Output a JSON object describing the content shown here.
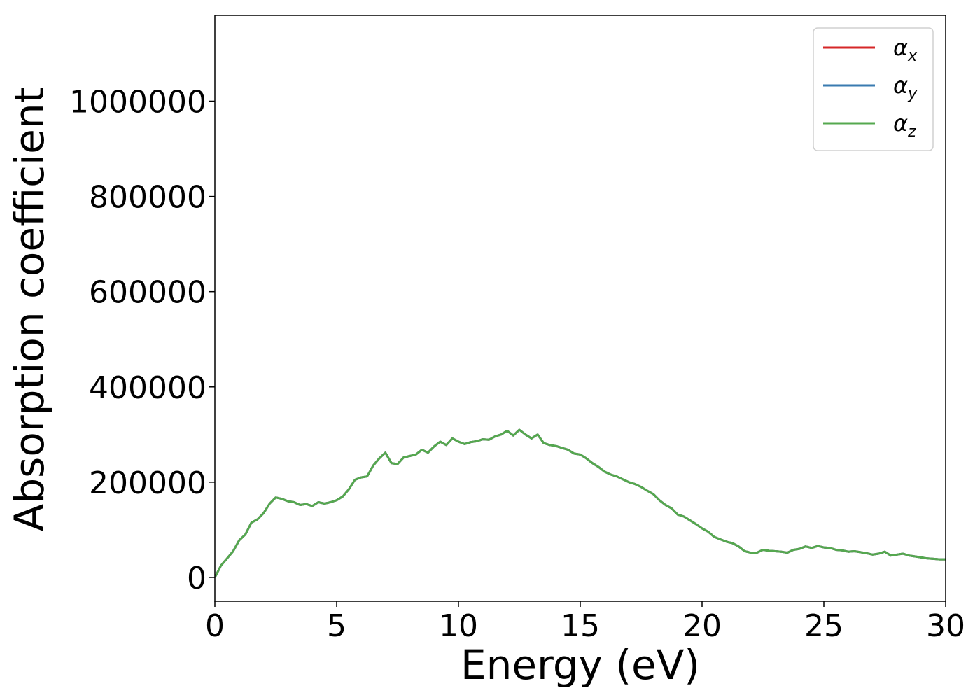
{
  "chart_data": {
    "type": "line",
    "title": "",
    "xlabel": "Energy (eV)",
    "ylabel": "Absorption coefficient",
    "xlim": [
      0,
      30
    ],
    "ylim": [
      -50000,
      1180000
    ],
    "x_ticks": [
      0,
      5,
      10,
      15,
      20,
      25,
      30
    ],
    "y_ticks": [
      0,
      200000,
      400000,
      600000,
      800000,
      1000000
    ],
    "grid": false,
    "legend_position": "top-right",
    "series": [
      {
        "name": "α",
        "subscript": "x",
        "color": "#d62728",
        "x": [
          0,
          0.25,
          0.5,
          0.75,
          1,
          1.25,
          1.5,
          1.75,
          2,
          2.25,
          2.5,
          2.75,
          3,
          3.25,
          3.5,
          3.75,
          4,
          4.25,
          4.5,
          4.75,
          5,
          5.25,
          5.5,
          5.75,
          6,
          6.25,
          6.5,
          6.75,
          7,
          7.25,
          7.5,
          7.75,
          8,
          8.25,
          8.5,
          8.75,
          9,
          9.25,
          9.5,
          9.75,
          10,
          10.25,
          10.5,
          10.75,
          11,
          11.25,
          11.5,
          11.75,
          12,
          12.25,
          12.5,
          12.75,
          13,
          13.25,
          13.5,
          13.75,
          14,
          14.25,
          14.5,
          14.75,
          15,
          15.25,
          15.5,
          15.75,
          16,
          16.25,
          16.5,
          16.75,
          17,
          17.25,
          17.5,
          17.75,
          18,
          18.25,
          18.5,
          18.75,
          19,
          19.25,
          19.5,
          19.75,
          20,
          20.25,
          20.5,
          20.75,
          21,
          21.25,
          21.5,
          21.75,
          22,
          22.25,
          22.5,
          22.75,
          23,
          23.25,
          23.5,
          23.75,
          24,
          24.25,
          24.5,
          24.75,
          25,
          25.25,
          25.5,
          25.75,
          26,
          26.25,
          26.5,
          26.75,
          27,
          27.25,
          27.5,
          27.75,
          28,
          28.25,
          28.5,
          28.75,
          29,
          29.25,
          29.5,
          29.75,
          30
        ],
        "y": [
          0,
          25000,
          40000,
          55000,
          78000,
          90000,
          115000,
          122000,
          135000,
          155000,
          168000,
          165000,
          160000,
          158000,
          152000,
          154000,
          150000,
          158000,
          155000,
          158000,
          162000,
          170000,
          185000,
          205000,
          210000,
          212000,
          235000,
          250000,
          262000,
          240000,
          238000,
          252000,
          255000,
          258000,
          268000,
          262000,
          275000,
          285000,
          278000,
          292000,
          285000,
          280000,
          284000,
          286000,
          290000,
          289000,
          296000,
          300000,
          308000,
          298000,
          310000,
          300000,
          292000,
          300000,
          282000,
          278000,
          276000,
          272000,
          268000,
          260000,
          258000,
          250000,
          240000,
          232000,
          222000,
          216000,
          212000,
          206000,
          200000,
          196000,
          190000,
          182000,
          175000,
          162000,
          152000,
          145000,
          132000,
          128000,
          120000,
          112000,
          103000,
          96000,
          85000,
          80000,
          75000,
          72000,
          65000,
          55000,
          52000,
          52000,
          58000,
          56000,
          55000,
          54000,
          52000,
          58000,
          60000,
          65000,
          62000,
          66000,
          63000,
          62000,
          58000,
          57000,
          54000,
          55000,
          53000,
          51000,
          48000,
          50000,
          54000,
          46000,
          48000,
          50000,
          46000,
          44000,
          42000,
          40000,
          39000,
          38000,
          38000
        ]
      },
      {
        "name": "α",
        "subscript": "y",
        "color": "#3a7bb0",
        "x": [
          0,
          0.25,
          0.5,
          0.75,
          1,
          1.25,
          1.5,
          1.75,
          2,
          2.25,
          2.5,
          2.75,
          3,
          3.25,
          3.5,
          3.75,
          4,
          4.25,
          4.5,
          4.75,
          5,
          5.25,
          5.5,
          5.75,
          6,
          6.25,
          6.5,
          6.75,
          7,
          7.25,
          7.5,
          7.75,
          8,
          8.25,
          8.5,
          8.75,
          9,
          9.25,
          9.5,
          9.75,
          10,
          10.25,
          10.5,
          10.75,
          11,
          11.25,
          11.5,
          11.75,
          12,
          12.25,
          12.5,
          12.75,
          13,
          13.25,
          13.5,
          13.75,
          14,
          14.25,
          14.5,
          14.75,
          15,
          15.25,
          15.5,
          15.75,
          16,
          16.25,
          16.5,
          16.75,
          17,
          17.25,
          17.5,
          17.75,
          18,
          18.25,
          18.5,
          18.75,
          19,
          19.25,
          19.5,
          19.75,
          20,
          20.25,
          20.5,
          20.75,
          21,
          21.25,
          21.5,
          21.75,
          22,
          22.25,
          22.5,
          22.75,
          23,
          23.25,
          23.5,
          23.75,
          24,
          24.25,
          24.5,
          24.75,
          25,
          25.25,
          25.5,
          25.75,
          26,
          26.25,
          26.5,
          26.75,
          27,
          27.25,
          27.5,
          27.75,
          28,
          28.25,
          28.5,
          28.75,
          29,
          29.25,
          29.5,
          29.75,
          30
        ],
        "y": [
          0,
          25000,
          40000,
          55000,
          78000,
          90000,
          115000,
          122000,
          135000,
          155000,
          168000,
          165000,
          160000,
          158000,
          152000,
          154000,
          150000,
          158000,
          155000,
          158000,
          162000,
          170000,
          185000,
          205000,
          210000,
          212000,
          235000,
          250000,
          262000,
          240000,
          238000,
          252000,
          255000,
          258000,
          268000,
          262000,
          275000,
          285000,
          278000,
          292000,
          285000,
          280000,
          284000,
          286000,
          290000,
          289000,
          296000,
          300000,
          308000,
          298000,
          310000,
          300000,
          292000,
          300000,
          282000,
          278000,
          276000,
          272000,
          268000,
          260000,
          258000,
          250000,
          240000,
          232000,
          222000,
          216000,
          212000,
          206000,
          200000,
          196000,
          190000,
          182000,
          175000,
          162000,
          152000,
          145000,
          132000,
          128000,
          120000,
          112000,
          103000,
          96000,
          85000,
          80000,
          75000,
          72000,
          65000,
          55000,
          52000,
          52000,
          58000,
          56000,
          55000,
          54000,
          52000,
          58000,
          60000,
          65000,
          62000,
          66000,
          63000,
          62000,
          58000,
          57000,
          54000,
          55000,
          53000,
          51000,
          48000,
          50000,
          54000,
          46000,
          48000,
          50000,
          46000,
          44000,
          42000,
          40000,
          39000,
          38000,
          38000
        ]
      },
      {
        "name": "α",
        "subscript": "z",
        "color": "#55a84f",
        "x": [
          0,
          0.25,
          0.5,
          0.75,
          1,
          1.25,
          1.5,
          1.75,
          2,
          2.25,
          2.5,
          2.75,
          3,
          3.25,
          3.5,
          3.75,
          4,
          4.25,
          4.5,
          4.75,
          5,
          5.25,
          5.5,
          5.75,
          6,
          6.25,
          6.5,
          6.75,
          7,
          7.25,
          7.5,
          7.75,
          8,
          8.25,
          8.5,
          8.75,
          9,
          9.25,
          9.5,
          9.75,
          10,
          10.25,
          10.5,
          10.75,
          11,
          11.25,
          11.5,
          11.75,
          12,
          12.25,
          12.5,
          12.75,
          13,
          13.25,
          13.5,
          13.75,
          14,
          14.25,
          14.5,
          14.75,
          15,
          15.25,
          15.5,
          15.75,
          16,
          16.25,
          16.5,
          16.75,
          17,
          17.25,
          17.5,
          17.75,
          18,
          18.25,
          18.5,
          18.75,
          19,
          19.25,
          19.5,
          19.75,
          20,
          20.25,
          20.5,
          20.75,
          21,
          21.25,
          21.5,
          21.75,
          22,
          22.25,
          22.5,
          22.75,
          23,
          23.25,
          23.5,
          23.75,
          24,
          24.25,
          24.5,
          24.75,
          25,
          25.25,
          25.5,
          25.75,
          26,
          26.25,
          26.5,
          26.75,
          27,
          27.25,
          27.5,
          27.75,
          28,
          28.25,
          28.5,
          28.75,
          29,
          29.25,
          29.5,
          29.75,
          30
        ],
        "y": [
          0,
          25000,
          40000,
          55000,
          78000,
          90000,
          115000,
          122000,
          135000,
          155000,
          168000,
          165000,
          160000,
          158000,
          152000,
          154000,
          150000,
          158000,
          155000,
          158000,
          162000,
          170000,
          185000,
          205000,
          210000,
          212000,
          235000,
          250000,
          262000,
          240000,
          238000,
          252000,
          255000,
          258000,
          268000,
          262000,
          275000,
          285000,
          278000,
          292000,
          285000,
          280000,
          284000,
          286000,
          290000,
          289000,
          296000,
          300000,
          308000,
          298000,
          310000,
          300000,
          292000,
          300000,
          282000,
          278000,
          276000,
          272000,
          268000,
          260000,
          258000,
          250000,
          240000,
          232000,
          222000,
          216000,
          212000,
          206000,
          200000,
          196000,
          190000,
          182000,
          175000,
          162000,
          152000,
          145000,
          132000,
          128000,
          120000,
          112000,
          103000,
          96000,
          85000,
          80000,
          75000,
          72000,
          65000,
          55000,
          52000,
          52000,
          58000,
          56000,
          55000,
          54000,
          52000,
          58000,
          60000,
          65000,
          62000,
          66000,
          63000,
          62000,
          58000,
          57000,
          54000,
          55000,
          53000,
          51000,
          48000,
          50000,
          54000,
          46000,
          48000,
          50000,
          46000,
          44000,
          42000,
          40000,
          39000,
          38000,
          38000
        ]
      }
    ]
  }
}
